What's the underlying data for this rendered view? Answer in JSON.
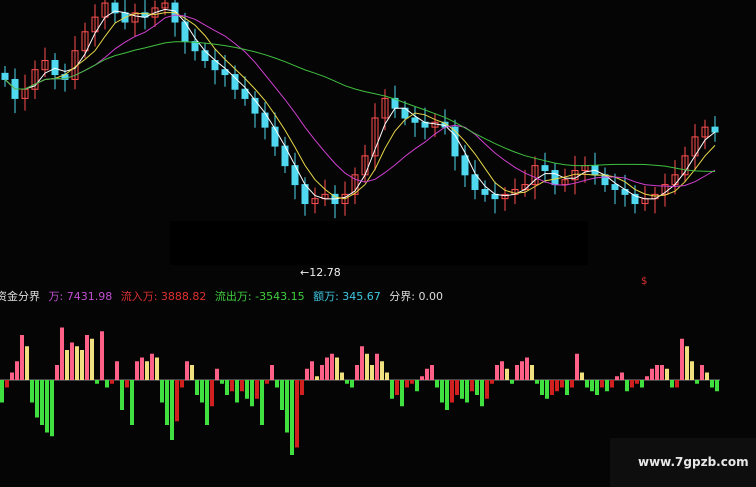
{
  "chart_data": [
    {
      "type": "candlestick",
      "closes": [
        15.75,
        15.44,
        15.59,
        15.91,
        16.06,
        15.83,
        15.75,
        16.22,
        16.53,
        16.77,
        17.0,
        16.84,
        16.69,
        16.84,
        16.77,
        16.92,
        17.0,
        16.69,
        16.37,
        16.22,
        16.06,
        15.91,
        15.83,
        15.59,
        15.44,
        15.2,
        14.97,
        14.66,
        14.34,
        14.03,
        13.72,
        13.8,
        13.87,
        13.72,
        13.87,
        14.19,
        14.5,
        15.12,
        15.44,
        15.28,
        15.12,
        15.05,
        14.97,
        15.05,
        14.97,
        14.5,
        14.19,
        13.95,
        13.87,
        13.8,
        13.87,
        13.95,
        14.03,
        14.34,
        14.26,
        14.03,
        14.11,
        14.26,
        14.34,
        14.19,
        14.03,
        13.95,
        13.87,
        13.72,
        13.8,
        13.87,
        14.03,
        14.19,
        14.5,
        14.81,
        14.97,
        14.89
      ],
      "low_annotation": "←12.78",
      "moving_averages": [
        {
          "period": 5,
          "color": "#ffffff"
        },
        {
          "period": 10,
          "color": "#e8d84a"
        },
        {
          "period": 20,
          "color": "#d040d0"
        },
        {
          "period": 60,
          "color": "#40c040"
        }
      ],
      "up_color": "#ff5050",
      "down_color": "#50d8f0",
      "marker": "$"
    },
    {
      "type": "bar",
      "title": "资金分界",
      "legend": [
        {
          "label": "万: 7431.98",
          "color": "#c050d0"
        },
        {
          "label": "流入万: 3888.82",
          "color": "#e03030"
        },
        {
          "label": "流出万: -3543.15",
          "color": "#40d040"
        },
        {
          "label": "额万: 345.67",
          "color": "#40c8e0"
        },
        {
          "label": "分界: 0.00",
          "color": "#dddddd"
        }
      ],
      "values": [
        -30,
        -10,
        10,
        25,
        60,
        45,
        -30,
        -50,
        -60,
        -70,
        -75,
        20,
        70,
        40,
        50,
        45,
        40,
        60,
        55,
        -5,
        65,
        -10,
        -5,
        25,
        -40,
        -10,
        -60,
        25,
        30,
        25,
        35,
        30,
        -30,
        -60,
        -80,
        -55,
        -10,
        25,
        20,
        -20,
        -30,
        -60,
        -35,
        15,
        -5,
        -20,
        -15,
        -30,
        -15,
        -25,
        -35,
        -25,
        -60,
        -5,
        20,
        -10,
        -40,
        -70,
        -100,
        -90,
        -20,
        15,
        25,
        5,
        20,
        30,
        35,
        30,
        10,
        -5,
        -10,
        20,
        45,
        35,
        20,
        35,
        25,
        10,
        -25,
        -20,
        -35,
        -10,
        -5,
        -15,
        5,
        15,
        20,
        -10,
        -30,
        -40,
        -30,
        -20,
        -25,
        -30,
        -15,
        -20,
        -35,
        -25,
        -5,
        20,
        25,
        15,
        -5,
        20,
        25,
        30,
        20,
        -5,
        -20,
        -25,
        -20,
        -15,
        -10,
        -20,
        -10,
        35,
        10,
        -10,
        -15,
        -20,
        -10,
        -15,
        -10,
        5,
        10,
        -15,
        -10,
        -5,
        -10,
        5,
        15,
        20,
        20,
        15,
        -10,
        -10,
        55,
        45,
        25,
        -5,
        20,
        10,
        -10,
        -15
      ],
      "colors": {
        "pos_up": "#ff6088",
        "pos_down": "#f0e080",
        "neg_down": "#40e040",
        "neg_up": "#d02020"
      }
    }
  ],
  "watermark": "www.7gpzb.com"
}
